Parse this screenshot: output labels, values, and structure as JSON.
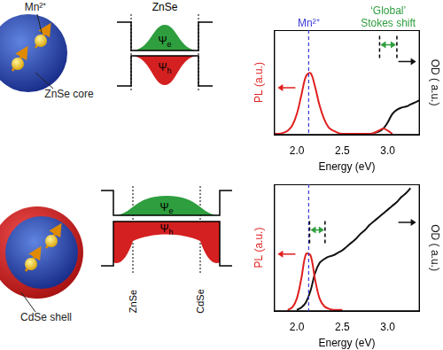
{
  "diagram": {
    "top": {
      "ion_label": "Mn²⁺",
      "core_label": "ZnSe core",
      "well_label": "ZnSe",
      "electron": {
        "symbol": "Ψ",
        "subscript": "e"
      },
      "hole": {
        "symbol": "Ψ",
        "subscript": "h"
      }
    },
    "bottom": {
      "shell_label": "CdSe shell",
      "region_labels": [
        "ZnSe",
        "CdSe"
      ],
      "electron": {
        "symbol": "Ψ",
        "subscript": "e"
      },
      "hole": {
        "symbol": "Ψ",
        "subscript": "h"
      }
    }
  },
  "chart_data": [
    {
      "type": "line",
      "x_label": "Energy (eV)",
      "y_label": "PL (a.u.)",
      "y2_label": "OD ( a.u.)",
      "x": [
        1.75,
        1.8,
        1.85,
        1.9,
        1.95,
        2.0,
        2.05,
        2.1,
        2.15,
        2.2,
        2.25,
        2.3,
        2.35,
        2.4,
        2.45,
        2.5,
        2.55,
        2.6,
        2.65,
        2.7,
        2.75,
        2.8,
        2.85,
        2.9,
        2.95,
        3.0,
        3.05,
        3.1,
        3.15,
        3.2,
        3.25,
        3.3,
        3.35
      ],
      "series": [
        {
          "name": "PL",
          "color": "#e01f1f",
          "values": [
            0.01,
            0.01,
            0.02,
            0.04,
            0.09,
            0.2,
            0.38,
            0.56,
            0.59,
            0.46,
            0.28,
            0.15,
            0.07,
            0.04,
            0.02,
            0.01,
            0.01,
            0.01,
            0.01,
            0.01,
            0.01,
            0.01,
            0.02,
            0.04,
            0.06,
            0.04,
            0.01,
            null,
            null,
            null,
            null,
            null,
            null
          ]
        },
        {
          "name": "OD",
          "color": "#111111",
          "axis": "y2",
          "values": [
            null,
            null,
            null,
            null,
            null,
            null,
            null,
            null,
            null,
            null,
            null,
            null,
            null,
            null,
            null,
            null,
            null,
            null,
            null,
            null,
            null,
            null,
            0.02,
            0.03,
            0.06,
            0.12,
            0.2,
            0.24,
            0.26,
            0.27,
            0.29,
            0.31,
            0.33
          ]
        }
      ],
      "xlim": [
        1.75,
        3.35
      ],
      "xticks": [
        {
          "value": 2,
          "label": "2.0"
        },
        {
          "value": 2.5,
          "label": "2.5"
        },
        {
          "value": 3,
          "label": "3.0"
        }
      ],
      "ylim": [
        0,
        1
      ],
      "y2lim": [
        0,
        1
      ],
      "tick_labels": "x",
      "grid": false,
      "annotations": [
        {
          "text": "Mn²⁺",
          "x": 2.13,
          "color": "#3b3bd6",
          "line_style": "dashed"
        },
        {
          "text": "‘Global’ Stokes shift",
          "x": [
            2.91,
            3.1
          ],
          "y": 0.86,
          "color": "#2e9e3e"
        }
      ]
    },
    {
      "type": "line",
      "x_label": "Energy (eV)",
      "y_label": "PL (a.u.)",
      "y2_label": "OD ( a.u.)",
      "x": [
        1.75,
        1.8,
        1.85,
        1.9,
        1.95,
        2.0,
        2.05,
        2.1,
        2.15,
        2.2,
        2.25,
        2.3,
        2.35,
        2.4,
        2.45,
        2.5,
        2.55,
        2.6,
        2.65,
        2.7,
        2.75,
        2.8,
        2.85,
        2.9,
        2.95,
        3.0,
        3.05,
        3.1,
        3.15,
        3.2,
        3.25,
        3.3,
        3.35
      ],
      "series": [
        {
          "name": "PL",
          "color": "#e01f1f",
          "values": [
            null,
            null,
            null,
            0.01,
            0.03,
            0.1,
            0.26,
            0.45,
            0.44,
            0.25,
            0.1,
            0.04,
            0.02,
            0.01,
            0.01,
            0.01,
            null,
            null,
            null,
            null,
            null,
            null,
            null,
            null,
            null,
            null,
            null,
            null,
            null,
            null,
            null,
            null,
            null
          ]
        },
        {
          "name": "OD",
          "color": "#111111",
          "axis": "y2",
          "values": [
            null,
            null,
            null,
            null,
            null,
            0.01,
            0.03,
            0.07,
            0.16,
            0.3,
            0.38,
            0.41,
            0.43,
            0.44,
            0.46,
            0.48,
            0.51,
            0.54,
            0.57,
            0.61,
            0.64,
            0.68,
            0.71,
            0.74,
            0.77,
            0.8,
            0.83,
            0.86,
            0.9,
            0.93,
            0.97,
            null,
            null
          ]
        }
      ],
      "xlim": [
        1.75,
        3.35
      ],
      "xticks": [
        {
          "value": 2,
          "label": "2.0"
        },
        {
          "value": 2.5,
          "label": "2.5"
        },
        {
          "value": 3,
          "label": "3.0"
        }
      ],
      "ylim": [
        0,
        1
      ],
      "y2lim": [
        0,
        1
      ],
      "tick_labels": "x",
      "grid": false,
      "annotations": [
        {
          "x": 2.13,
          "color": "#3b3bd6",
          "line_style": "dashed"
        },
        {
          "x": [
            2.14,
            2.31
          ],
          "y": 0.64,
          "color": "#2e9e3e"
        }
      ]
    }
  ]
}
